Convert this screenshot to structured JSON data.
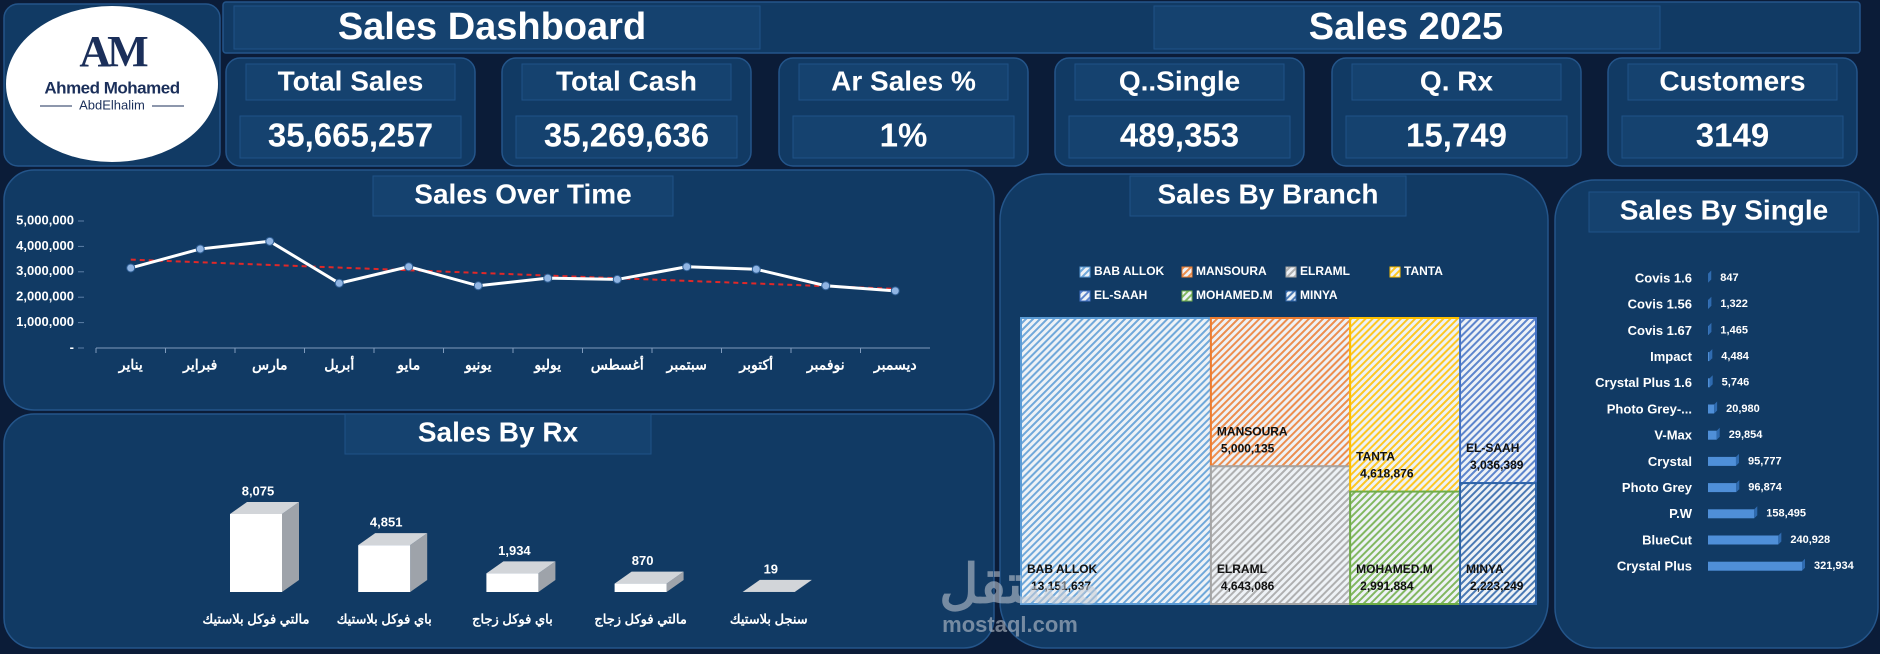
{
  "header": {
    "title": "Sales Dashboard",
    "year_title": "Sales 2025"
  },
  "logo": {
    "mark": "AM",
    "name": "Ahmed Mohamed",
    "subname": "AbdElhalim"
  },
  "kpis": [
    {
      "label": "Total Sales",
      "value": "35,665,257"
    },
    {
      "label": "Total Cash",
      "value": "35,269,636"
    },
    {
      "label": "Ar Sales %",
      "value": "1%"
    },
    {
      "label": "Q..Single",
      "value": "489,353"
    },
    {
      "label": "Q. Rx",
      "value": "15,749"
    },
    {
      "label": "Customers",
      "value": "3149"
    }
  ],
  "watermark": {
    "arabic": "مستقل",
    "latin": "mostaql.com"
  },
  "chart_data": [
    {
      "type": "line",
      "title": "Sales Over Time",
      "categories": [
        "يناير",
        "فبراير",
        "مارس",
        "أبريل",
        "مايو",
        "يونيو",
        "يوليو",
        "أغسطس",
        "سبتمبر",
        "أكتوبر",
        "نوفمبر",
        "ديسمبر"
      ],
      "values": [
        3150000,
        3900000,
        4200000,
        2550000,
        3200000,
        2450000,
        2750000,
        2700000,
        3200000,
        3100000,
        2450000,
        2250000
      ],
      "color": "#ffffff",
      "marker_color": "#8fb4e3",
      "trendline": {
        "values": [
          3480000,
          2330000
        ],
        "color": "#e02828"
      },
      "ylim": [
        0,
        5000000
      ],
      "yticks": [
        {
          "value": 0,
          "label": "-"
        },
        {
          "value": 1000000,
          "label": "1,000,000"
        },
        {
          "value": 2000000,
          "label": "2,000,000"
        },
        {
          "value": 3000000,
          "label": "3,000,000"
        },
        {
          "value": 4000000,
          "label": "4,000,000"
        },
        {
          "value": 5000000,
          "label": "5,000,000"
        }
      ]
    },
    {
      "type": "bar",
      "title": "Sales By Rx",
      "categories": [
        "مالتي فوكل بلاستيك",
        "باي فوكل بلاستيك",
        "باي فوكل زجاج",
        "مالتي فوكل زجاج",
        "سنجل بلاستيك"
      ],
      "values": [
        8075,
        4851,
        1934,
        870,
        19
      ],
      "value_labels": [
        "8,075",
        "4,851",
        "1,934",
        "870",
        "19"
      ],
      "color": "#ffffff"
    },
    {
      "type": "treemap",
      "title": "Sales By Branch",
      "categories": [
        "BAB ALLOK",
        "MANSOURA",
        "ELRAML",
        "TANTA",
        "EL-SAAH",
        "MOHAMED.M",
        "MINYA"
      ],
      "values": [
        13151637,
        5000135,
        4643086,
        4618876,
        3036389,
        2991884,
        2223249
      ],
      "value_labels": [
        "13,151,637",
        "5,000,135",
        "4,643,086",
        "4,618,876",
        "3,036,389",
        "2,991,884",
        "2,223,249"
      ],
      "colors": [
        "#5b9bd5",
        "#ed7d31",
        "#a5a5a5",
        "#ffc000",
        "#4472c4",
        "#70ad47",
        "#2e64a8"
      ]
    },
    {
      "type": "barh",
      "title": "Sales By Single",
      "categories": [
        "Covis 1.6",
        "Covis 1.56",
        "Covis 1.67",
        "Impact",
        "Crystal Plus 1.6",
        "Photo Grey-...",
        "V-Max",
        "Crystal",
        "Photo Grey",
        "P.W",
        "BlueCut",
        "Crystal Plus"
      ],
      "values": [
        847,
        1322,
        1465,
        4484,
        5746,
        20980,
        29854,
        95777,
        96874,
        158495,
        240928,
        321934
      ],
      "value_labels": [
        "847",
        "1,322",
        "1,465",
        "4,484",
        "5,746",
        "20,980",
        "29,854",
        "95,777",
        "96,874",
        "158,495",
        "240,928",
        "321,934"
      ],
      "color": "#4f8fd8"
    }
  ]
}
